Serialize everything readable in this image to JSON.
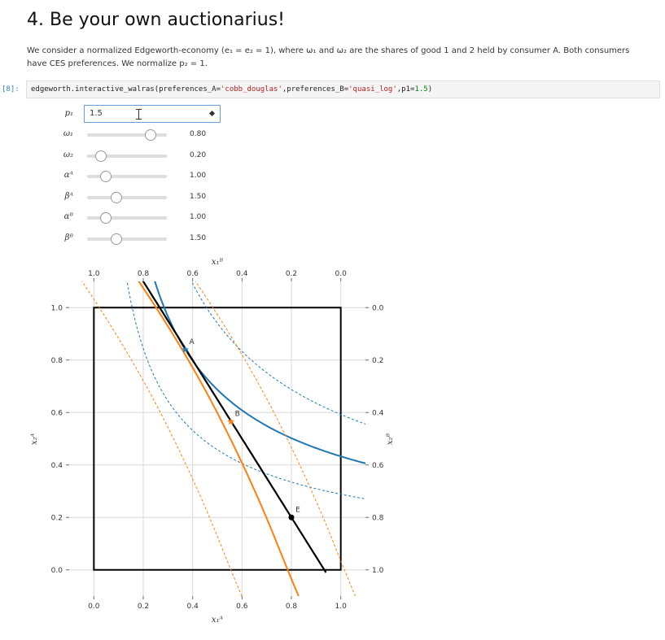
{
  "heading": "4. Be your own auctionarius!",
  "description": "We consider a normalized Edgeworth-economy (e₁ = e₂ = 1), where ω₁ and ω₂ are the shares of good 1 and 2 held by consumer A. Both consumers have CES preferences. We normalize p₂ = 1.",
  "cell": {
    "prompt": "[8]:",
    "code_prefix": "edgeworth.interactive_walras(preferences_A=",
    "arg_a": "'cobb_douglas'",
    "code_mid": ",preferences_B=",
    "arg_b": "'quasi_log'",
    "code_mid2": ",p1=",
    "arg_p1": "1.5",
    "code_suffix": ")"
  },
  "widgets": {
    "p1": {
      "label": "p₁",
      "value": "1.5"
    },
    "sliders": [
      {
        "label": "ω₁",
        "value": 0.8,
        "display": "0.80",
        "fraction": 0.8
      },
      {
        "label": "ω₂",
        "value": 0.2,
        "display": "0.20",
        "fraction": 0.17
      },
      {
        "label": "αᴬ",
        "value": 1.0,
        "display": "1.00",
        "fraction": 0.23
      },
      {
        "label": "βᴬ",
        "value": 1.5,
        "display": "1.50",
        "fraction": 0.37
      },
      {
        "label": "αᴮ",
        "value": 1.0,
        "display": "1.00",
        "fraction": 0.23
      },
      {
        "label": "βᴮ",
        "value": 1.5,
        "display": "1.50",
        "fraction": 0.37
      }
    ]
  },
  "chart_data": {
    "type": "line",
    "x_bottom_label": "x₁ᴬ",
    "y_left_label": "x₂ᴬ",
    "x_top_label": "x₁ᴮ",
    "y_right_label": "x₂ᴮ",
    "x_bottom_ticks": [
      "0.0",
      "0.2",
      "0.4",
      "0.6",
      "0.8",
      "1.0"
    ],
    "x_top_ticks": [
      "1.0",
      "0.8",
      "0.6",
      "0.4",
      "0.2",
      "0.0"
    ],
    "y_left_ticks": [
      "0.0",
      "0.2",
      "0.4",
      "0.6",
      "0.8",
      "1.0"
    ],
    "y_right_ticks": [
      "1.0",
      "0.8",
      "0.6",
      "0.4",
      "0.2",
      "0.0"
    ],
    "xlim": [
      -0.1,
      1.1
    ],
    "ylim": [
      -0.1,
      1.1
    ],
    "grid": true,
    "colors": {
      "consumer_A": "#1f77b4",
      "consumer_B": "#ff7f0e",
      "budget": "#000000",
      "box": "#000000"
    },
    "budget_line": {
      "p1": 1.5,
      "endowment": [
        0.8,
        0.2
      ]
    },
    "indifference_A": [
      {
        "style": "solid",
        "level": 0.84
      },
      {
        "style": "dashed",
        "level": 0.56
      },
      {
        "style": "dashed",
        "level": 1.15
      }
    ],
    "indifference_B": [
      {
        "style": "solid"
      },
      {
        "style": "dashed",
        "offset": -0.23
      },
      {
        "style": "dashed",
        "offset": 0.23
      }
    ],
    "points": [
      {
        "label": "A",
        "x": 0.37,
        "y": 0.84,
        "color": "#1f77b4"
      },
      {
        "label": "B",
        "x": 0.555,
        "y": 0.565,
        "color": "#ff7f0e"
      },
      {
        "label": "E",
        "x": 0.8,
        "y": 0.2,
        "color": "#000000"
      }
    ]
  }
}
